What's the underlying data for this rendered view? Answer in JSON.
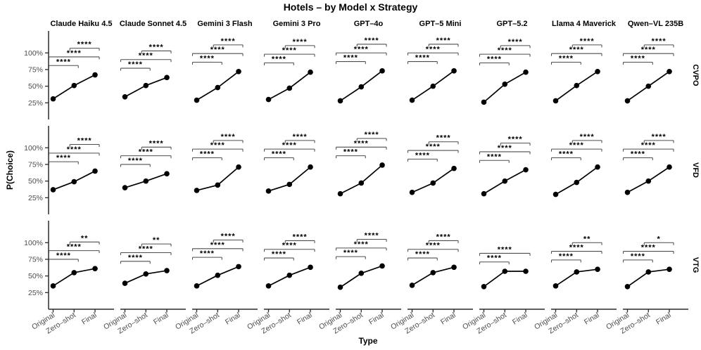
{
  "title": "Hotels – by Model x Strategy",
  "chart_data": {
    "type": "line",
    "title": "Hotels – by Model x Strategy",
    "xlabel": "Type",
    "ylabel": "P(Choice)",
    "x_categories": [
      "Original",
      "Zero–shot",
      "Final"
    ],
    "y_ticks": [
      {
        "value": 25,
        "label": "25%"
      },
      {
        "value": 50,
        "label": "50%"
      },
      {
        "value": 75,
        "label": "75%"
      },
      {
        "value": 100,
        "label": "100%"
      }
    ],
    "ylim": [
      0,
      133
    ],
    "grid": false,
    "legend": "none",
    "facet_rows": [
      "CVPO",
      "VFD",
      "VTG"
    ],
    "facet_columns": [
      "Claude Haiku 4.5",
      "Claude Sonnet 4.5",
      "Gemini 3 Flash",
      "Gemini 3 Pro",
      "GPT–4o",
      "GPT–5 Mini",
      "GPT–5.2",
      "Llama 4 Maverick",
      "Qwen–VL 235B"
    ],
    "sig_comparisons": [
      [
        0,
        1
      ],
      [
        0,
        2
      ],
      [
        1,
        2
      ]
    ],
    "colors": {
      "point": "#000000",
      "line": "#000000",
      "bracket": "#4d4d4d",
      "axis": "#2a2a2a",
      "axis_text": "#4d4d4d",
      "strip_text": "#000000",
      "sig_text": "#000000"
    },
    "cells": [
      {
        "row": "CVPO",
        "model": "Claude Haiku 4.5",
        "values": [
          31,
          51,
          67
        ],
        "sig": [
          "****",
          "****",
          "****"
        ]
      },
      {
        "row": "CVPO",
        "model": "Claude Sonnet 4.5",
        "values": [
          34,
          51,
          63
        ],
        "sig": [
          "****",
          "****",
          "****"
        ]
      },
      {
        "row": "CVPO",
        "model": "Gemini 3 Flash",
        "values": [
          29,
          48,
          72
        ],
        "sig": [
          "****",
          "****",
          "****"
        ]
      },
      {
        "row": "CVPO",
        "model": "Gemini 3 Pro",
        "values": [
          30,
          47,
          71
        ],
        "sig": [
          "****",
          "****",
          "****"
        ]
      },
      {
        "row": "CVPO",
        "model": "GPT–4o",
        "values": [
          28,
          49,
          73
        ],
        "sig": [
          "****",
          "****",
          "****"
        ]
      },
      {
        "row": "CVPO",
        "model": "GPT–5 Mini",
        "values": [
          29,
          50,
          73
        ],
        "sig": [
          "****",
          "****",
          "****"
        ]
      },
      {
        "row": "CVPO",
        "model": "GPT–5.2",
        "values": [
          26,
          53,
          71
        ],
        "sig": [
          "****",
          "****",
          "****"
        ]
      },
      {
        "row": "CVPO",
        "model": "Llama 4 Maverick",
        "values": [
          28,
          51,
          72
        ],
        "sig": [
          "****",
          "****",
          "****"
        ]
      },
      {
        "row": "CVPO",
        "model": "Qwen–VL 235B",
        "values": [
          28,
          50,
          72
        ],
        "sig": [
          "****",
          "****",
          "****"
        ]
      },
      {
        "row": "VFD",
        "model": "Claude Haiku 4.5",
        "values": [
          37,
          49,
          65
        ],
        "sig": [
          "****",
          "****",
          "****"
        ]
      },
      {
        "row": "VFD",
        "model": "Claude Sonnet 4.5",
        "values": [
          40,
          50,
          61
        ],
        "sig": [
          "****",
          "****",
          "****"
        ]
      },
      {
        "row": "VFD",
        "model": "Gemini 3 Flash",
        "values": [
          36,
          44,
          71
        ],
        "sig": [
          "****",
          "****",
          "****"
        ]
      },
      {
        "row": "VFD",
        "model": "Gemini 3 Pro",
        "values": [
          35,
          45,
          71
        ],
        "sig": [
          "****",
          "****",
          "****"
        ]
      },
      {
        "row": "VFD",
        "model": "GPT–4o",
        "values": [
          31,
          47,
          74
        ],
        "sig": [
          "****",
          "****",
          "****"
        ]
      },
      {
        "row": "VFD",
        "model": "GPT–5 Mini",
        "values": [
          33,
          47,
          69
        ],
        "sig": [
          "****",
          "****",
          "****"
        ]
      },
      {
        "row": "VFD",
        "model": "GPT–5.2",
        "values": [
          31,
          50,
          67
        ],
        "sig": [
          "****",
          "****",
          "****"
        ]
      },
      {
        "row": "VFD",
        "model": "Llama 4 Maverick",
        "values": [
          30,
          48,
          71
        ],
        "sig": [
          "****",
          "****",
          "****"
        ]
      },
      {
        "row": "VFD",
        "model": "Qwen–VL 235B",
        "values": [
          33,
          50,
          71
        ],
        "sig": [
          "****",
          "****",
          "****"
        ]
      },
      {
        "row": "VTG",
        "model": "Claude Haiku 4.5",
        "values": [
          35,
          55,
          61
        ],
        "sig": [
          "****",
          "****",
          "**"
        ]
      },
      {
        "row": "VTG",
        "model": "Claude Sonnet 4.5",
        "values": [
          39,
          53,
          58
        ],
        "sig": [
          "****",
          "****",
          "**"
        ]
      },
      {
        "row": "VTG",
        "model": "Gemini 3 Flash",
        "values": [
          35,
          51,
          64
        ],
        "sig": [
          "****",
          "****",
          "****"
        ]
      },
      {
        "row": "VTG",
        "model": "Gemini 3 Pro",
        "values": [
          35,
          51,
          63
        ],
        "sig": [
          "****",
          "****",
          "****"
        ]
      },
      {
        "row": "VTG",
        "model": "GPT–4o",
        "values": [
          33,
          54,
          65
        ],
        "sig": [
          "****",
          "****",
          "****"
        ]
      },
      {
        "row": "VTG",
        "model": "GPT–5 Mini",
        "values": [
          36,
          55,
          63
        ],
        "sig": [
          "****",
          "****",
          "****"
        ]
      },
      {
        "row": "VTG",
        "model": "GPT–5.2",
        "values": [
          34,
          57,
          57
        ],
        "sig": [
          "****",
          "****",
          null
        ]
      },
      {
        "row": "VTG",
        "model": "Llama 4 Maverick",
        "values": [
          35,
          56,
          60
        ],
        "sig": [
          "****",
          "****",
          "**"
        ]
      },
      {
        "row": "VTG",
        "model": "Qwen–VL 235B",
        "values": [
          34,
          56,
          60
        ],
        "sig": [
          "****",
          "****",
          "*"
        ]
      }
    ]
  }
}
